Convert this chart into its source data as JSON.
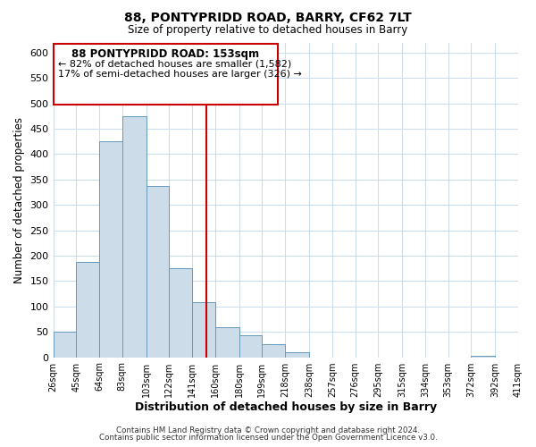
{
  "title_line1": "88, PONTYPRIDD ROAD, BARRY, CF62 7LT",
  "title_line2": "Size of property relative to detached houses in Barry",
  "xlabel": "Distribution of detached houses by size in Barry",
  "ylabel": "Number of detached properties",
  "bin_edges": [
    26,
    45,
    64,
    83,
    103,
    122,
    141,
    160,
    180,
    199,
    218,
    238,
    257,
    276,
    295,
    315,
    334,
    353,
    372,
    392,
    411
  ],
  "bin_heights": [
    50,
    188,
    425,
    475,
    338,
    175,
    108,
    60,
    44,
    25,
    10,
    0,
    0,
    0,
    0,
    0,
    0,
    0,
    3,
    0
  ],
  "bar_color": "#ccdce8",
  "bar_edge_color": "#6699bb",
  "property_line_x": 153,
  "property_line_color": "#cc0000",
  "ylim": [
    0,
    620
  ],
  "yticks": [
    0,
    50,
    100,
    150,
    200,
    250,
    300,
    350,
    400,
    450,
    500,
    550,
    600
  ],
  "tick_labels": [
    "26sqm",
    "45sqm",
    "64sqm",
    "83sqm",
    "103sqm",
    "122sqm",
    "141sqm",
    "160sqm",
    "180sqm",
    "199sqm",
    "218sqm",
    "238sqm",
    "257sqm",
    "276sqm",
    "295sqm",
    "315sqm",
    "334sqm",
    "353sqm",
    "372sqm",
    "392sqm",
    "411sqm"
  ],
  "annotation_title": "88 PONTYPRIDD ROAD: 153sqm",
  "annotation_line1": "← 82% of detached houses are smaller (1,582)",
  "annotation_line2": "17% of semi-detached houses are larger (326) →",
  "annotation_box_color": "#ffffff",
  "annotation_box_edge": "#cc0000",
  "footer_line1": "Contains HM Land Registry data © Crown copyright and database right 2024.",
  "footer_line2": "Contains public sector information licensed under the Open Government Licence v3.0.",
  "grid_color": "#ccddee",
  "background_color": "#ffffff"
}
